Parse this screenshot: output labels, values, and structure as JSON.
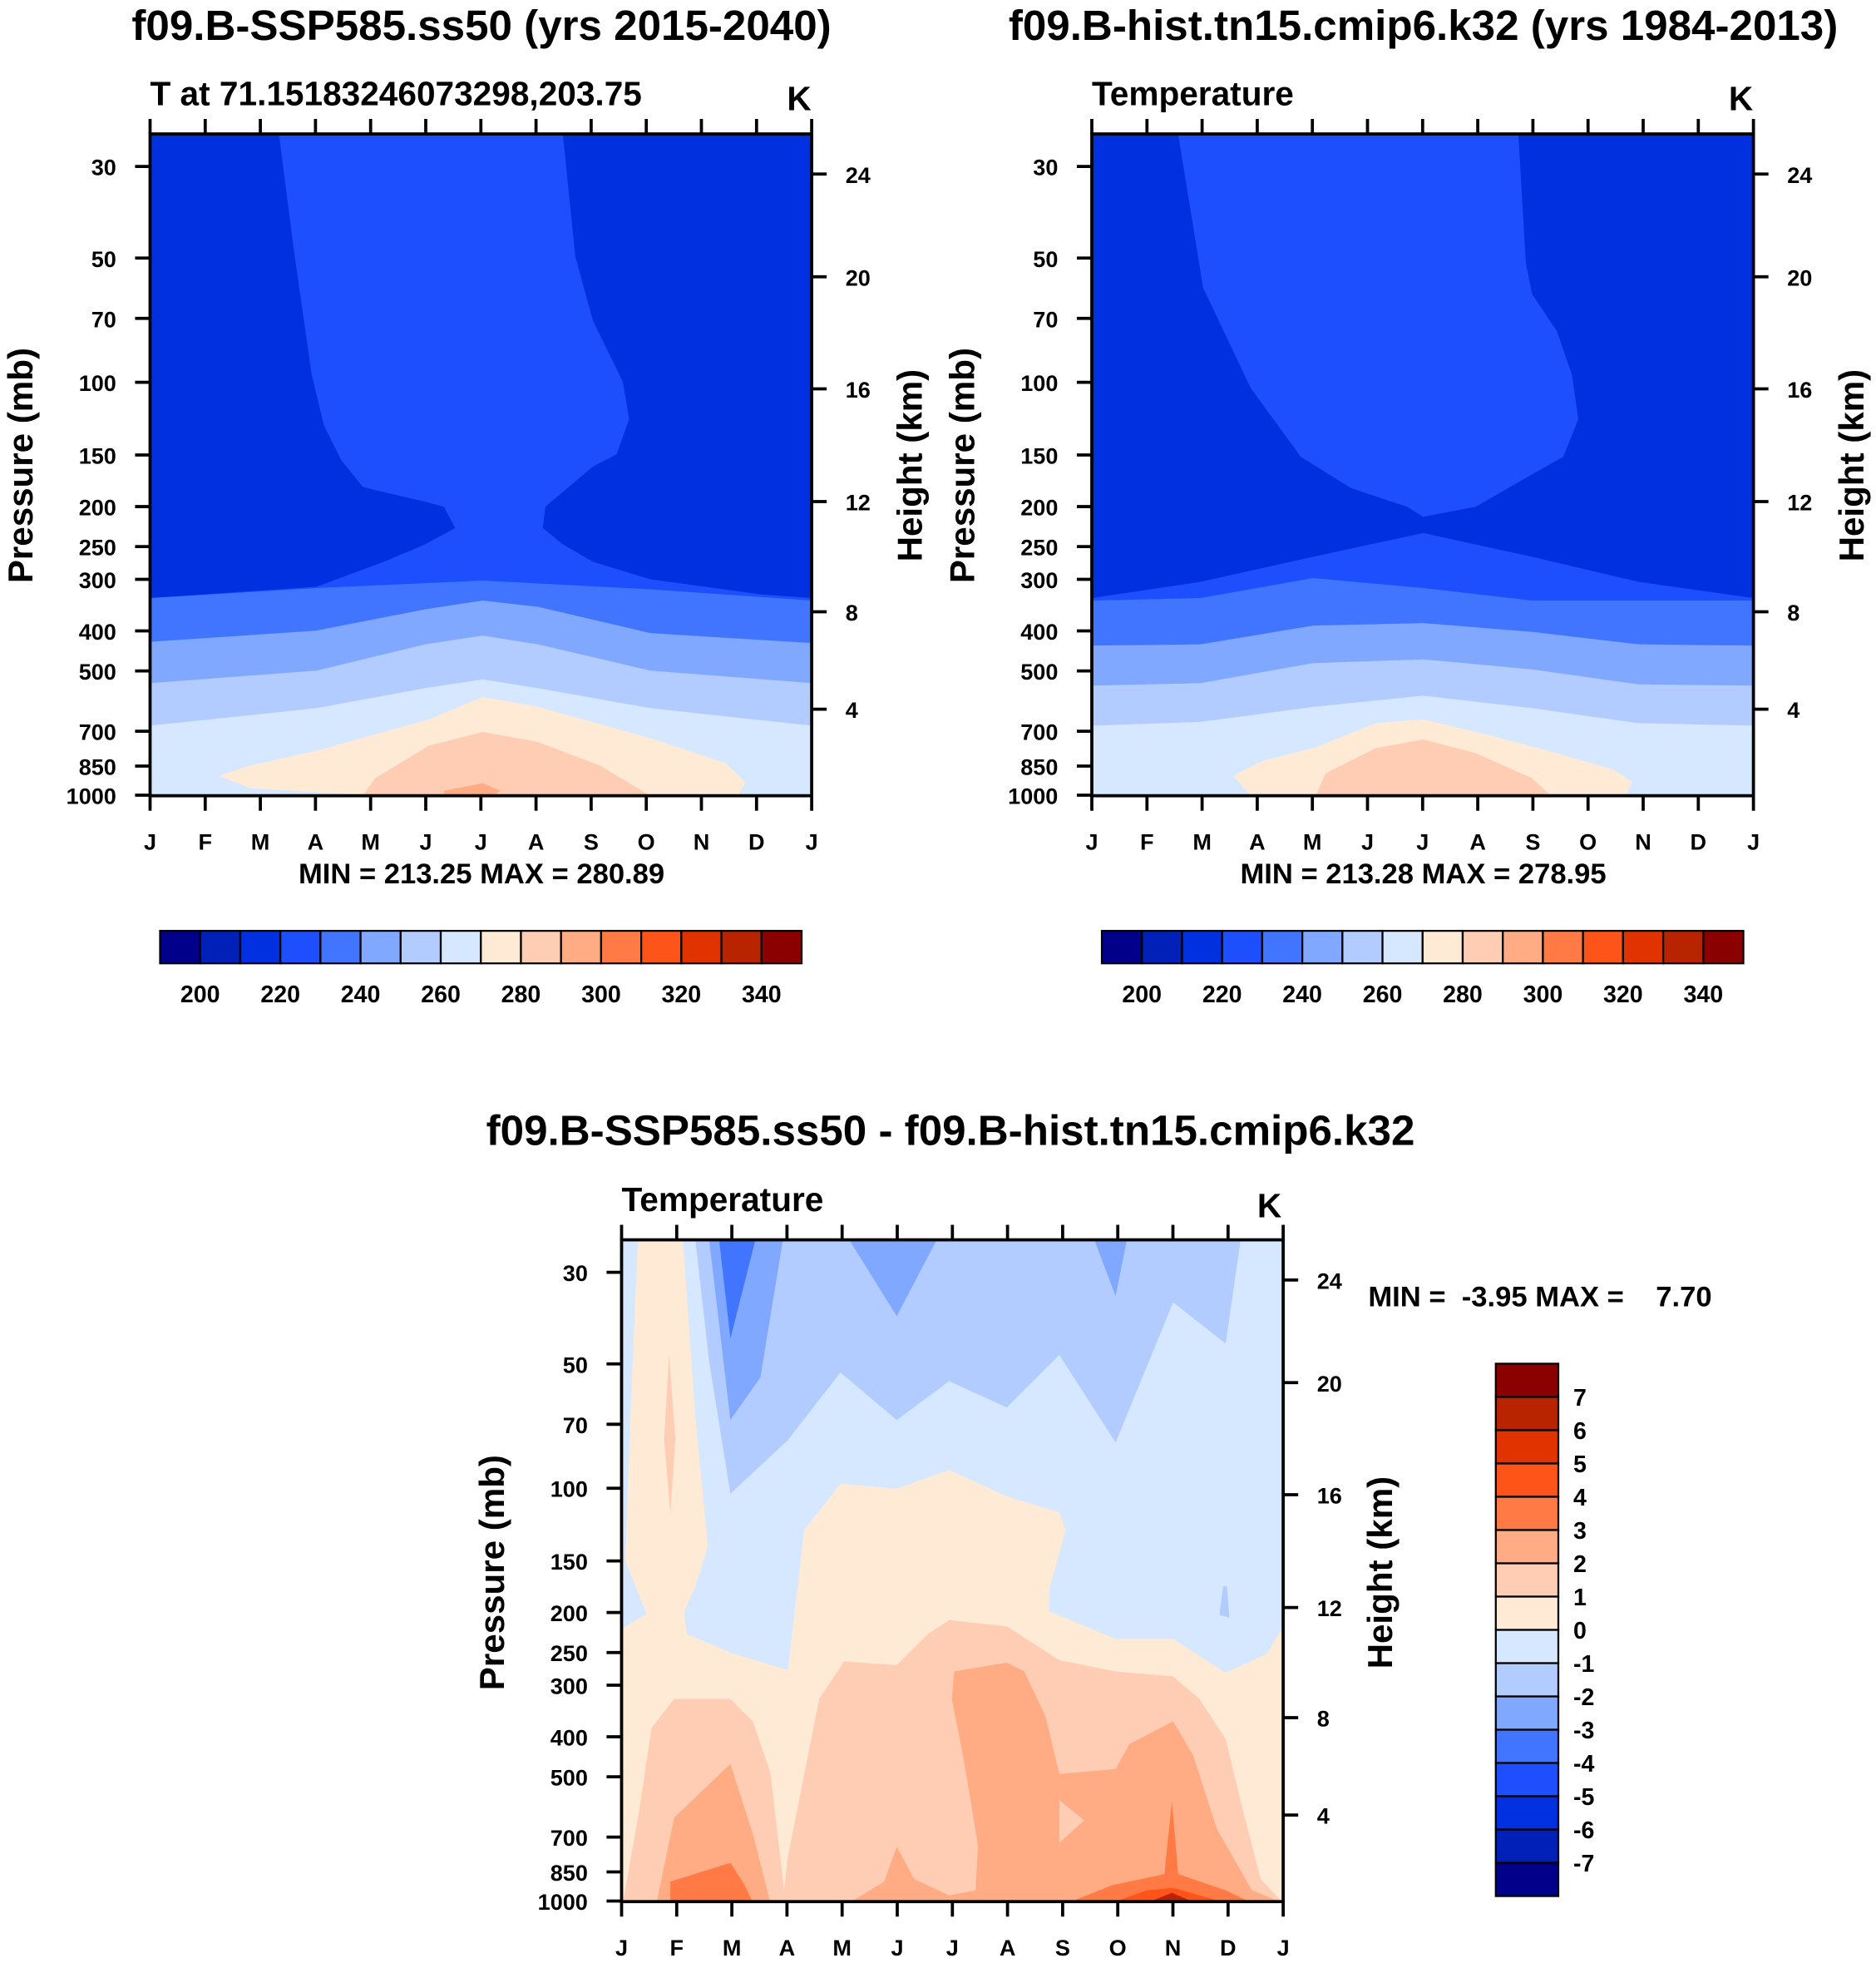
{
  "colors": [
    "#00008A",
    "#0020B8",
    "#0030E0",
    "#1E4FFF",
    "#4275FF",
    "#80A8FF",
    "#B3CCFF",
    "#D6E8FF",
    "#FFEAD6",
    "#FFCDB3",
    "#FFAC84",
    "#FF7A45",
    "#FF5419",
    "#E03300",
    "#B82300",
    "#8B0000"
  ],
  "chart_data": [
    {
      "type": "heatmap",
      "subtype": "filled-contour",
      "title": "f09.B-SSP585.ss50 (yrs 2015-2040)",
      "subtitle": "T at 71.15183246073298,203.75",
      "units": "K",
      "xlabel": "",
      "ylabel": "Pressure (mb)",
      "ylabel_right": "Height (km)",
      "x_ticks": [
        "J",
        "F",
        "M",
        "A",
        "M",
        "J",
        "J",
        "A",
        "S",
        "O",
        "N",
        "D",
        "J"
      ],
      "y_ticks": [
        "30",
        "50",
        "70",
        "100",
        "150",
        "200",
        "250",
        "300",
        "400",
        "500",
        "700",
        "850",
        "1000"
      ],
      "y_right_ticks": [
        "24",
        "20",
        "16",
        "12",
        "8",
        "4"
      ],
      "stats": "MIN = 213.25 MAX = 280.89",
      "min": 213.25,
      "max": 280.89,
      "levels": [
        200,
        210,
        220,
        230,
        240,
        250,
        260,
        270,
        280,
        290,
        300,
        310,
        320,
        330,
        340
      ],
      "colorbar_labels": [
        "200",
        "220",
        "240",
        "260",
        "280",
        "300",
        "320",
        "340"
      ]
    },
    {
      "type": "heatmap",
      "subtype": "filled-contour",
      "title": "f09.B-hist.tn15.cmip6.k32 (yrs 1984-2013)",
      "subtitle": "Temperature",
      "units": "K",
      "ylabel": "Pressure (mb)",
      "ylabel_right": "Height (km)",
      "x_ticks": [
        "J",
        "F",
        "M",
        "A",
        "M",
        "J",
        "J",
        "A",
        "S",
        "O",
        "N",
        "D",
        "J"
      ],
      "y_ticks": [
        "30",
        "50",
        "70",
        "100",
        "150",
        "200",
        "250",
        "300",
        "400",
        "500",
        "700",
        "850",
        "1000"
      ],
      "y_right_ticks": [
        "24",
        "20",
        "16",
        "12",
        "8",
        "4"
      ],
      "stats": "MIN = 213.28 MAX = 278.95",
      "min": 213.28,
      "max": 278.95,
      "levels": [
        200,
        210,
        220,
        230,
        240,
        250,
        260,
        270,
        280,
        290,
        300,
        310,
        320,
        330,
        340
      ],
      "colorbar_labels": [
        "200",
        "220",
        "240",
        "260",
        "280",
        "300",
        "320",
        "340"
      ]
    },
    {
      "type": "heatmap",
      "subtype": "filled-contour",
      "title": "f09.B-SSP585.ss50 - f09.B-hist.tn15.cmip6.k32",
      "subtitle": "Temperature",
      "units": "K",
      "ylabel": "Pressure (mb)",
      "ylabel_right": "Height (km)",
      "x_ticks": [
        "J",
        "F",
        "M",
        "A",
        "M",
        "J",
        "J",
        "A",
        "S",
        "O",
        "N",
        "D",
        "J"
      ],
      "y_ticks": [
        "30",
        "50",
        "70",
        "100",
        "150",
        "200",
        "250",
        "300",
        "400",
        "500",
        "700",
        "850",
        "1000"
      ],
      "y_right_ticks": [
        "24",
        "20",
        "16",
        "12",
        "8",
        "4"
      ],
      "stats": "MIN =  -3.95 MAX =    7.70",
      "min": -3.95,
      "max": 7.7,
      "levels": [
        -7,
        -6,
        -5,
        -4,
        -3,
        -2,
        -1,
        0,
        1,
        2,
        3,
        4,
        5,
        6,
        7
      ],
      "colorbar_labels": [
        "7",
        "6",
        "5",
        "4",
        "3",
        "2",
        "1",
        "0",
        "-1",
        "-2",
        "-3",
        "-4",
        "-5",
        "-6",
        "-7"
      ]
    }
  ]
}
